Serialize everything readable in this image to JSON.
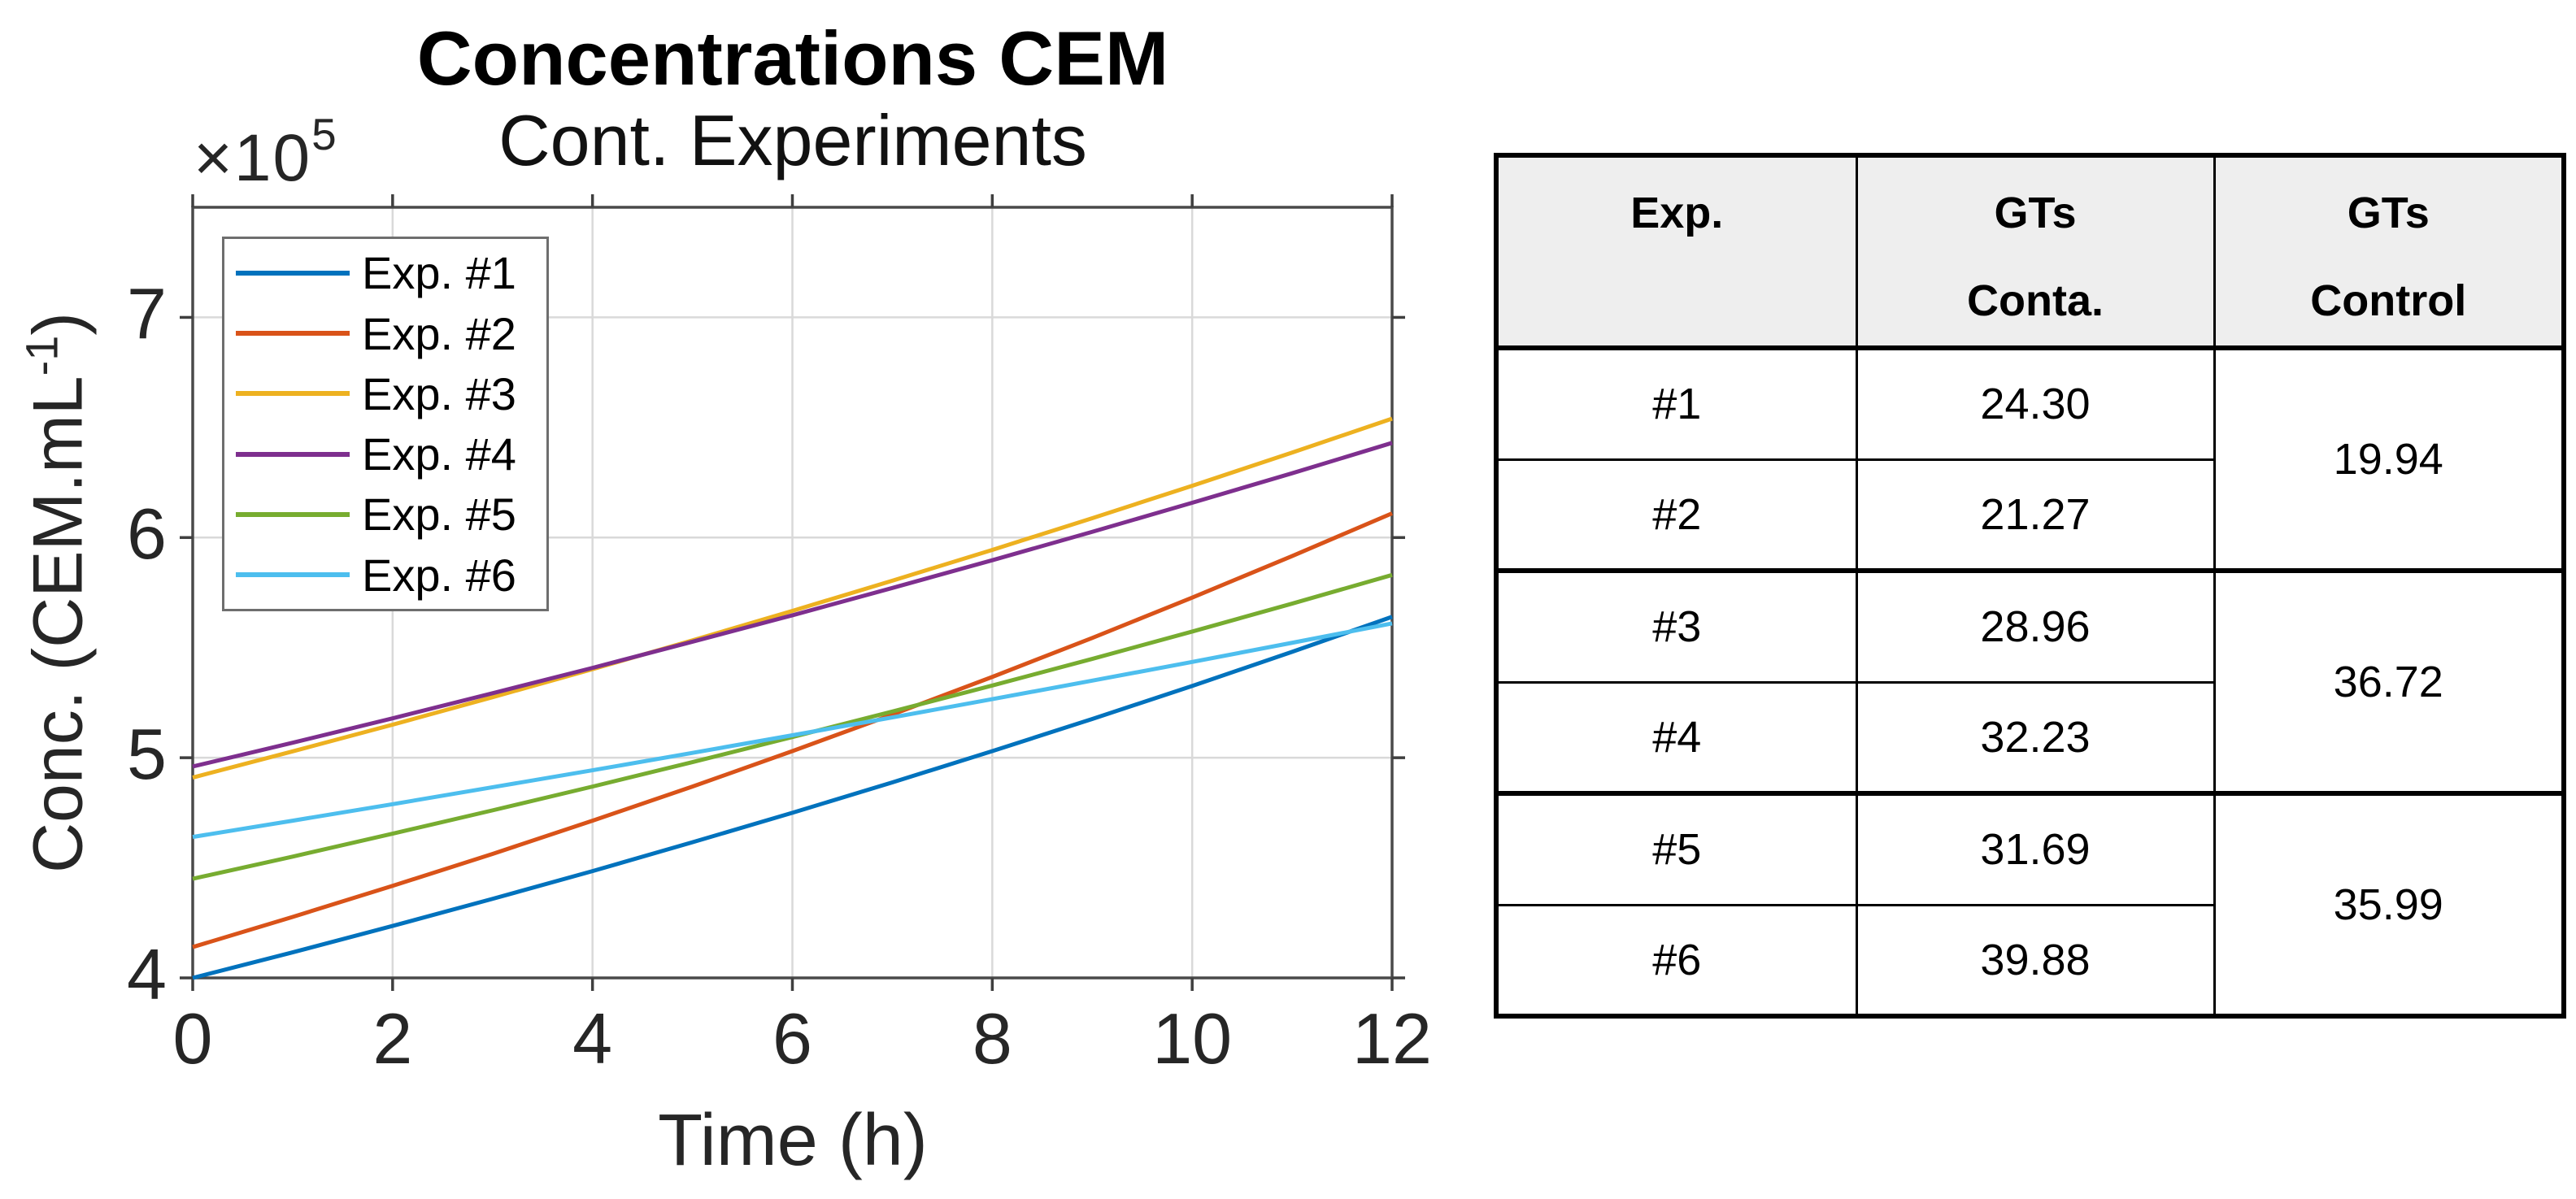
{
  "figure": {
    "title": "Concentrations CEM",
    "subtitle": "Cont. Experiments",
    "exponent_base": "×10",
    "exponent_power": "5",
    "xlabel": "Time (h)",
    "ylabel_pre": "Conc. (CEM.mL",
    "ylabel_sup": "-1",
    "ylabel_post": ")"
  },
  "chart_data": {
    "type": "line",
    "title": "Concentrations CEM",
    "subtitle": "Cont. Experiments",
    "xlabel": "Time (h)",
    "ylabel": "Conc. (CEM.mL^-1)",
    "y_scale_label": "×10^5",
    "xlim": [
      0,
      12
    ],
    "ylim": [
      4,
      7.5
    ],
    "x_ticks": [
      0,
      2,
      4,
      6,
      8,
      10,
      12
    ],
    "y_ticks": [
      4,
      5,
      6,
      7
    ],
    "grid": true,
    "legend_position": "upper-left-inside",
    "x": [
      0,
      1,
      2,
      3,
      4,
      5,
      6,
      7,
      8,
      9,
      10,
      11,
      12
    ],
    "series": [
      {
        "name": "Exp. #1",
        "color": "#0072BD",
        "values": [
          4.0,
          4.116,
          4.236,
          4.359,
          4.485,
          4.616,
          4.75,
          4.888,
          5.03,
          5.176,
          5.326,
          5.481,
          5.64
        ]
      },
      {
        "name": "Exp. #2",
        "color": "#D95319",
        "values": [
          4.14,
          4.277,
          4.418,
          4.563,
          4.714,
          4.869,
          5.03,
          5.196,
          5.367,
          5.544,
          5.727,
          5.916,
          6.11
        ]
      },
      {
        "name": "Exp. #3",
        "color": "#EDB120",
        "values": [
          4.91,
          5.029,
          5.15,
          5.275,
          5.402,
          5.533,
          5.667,
          5.804,
          5.944,
          6.088,
          6.235,
          6.386,
          6.54
        ]
      },
      {
        "name": "Exp. #4",
        "color": "#7E2F8E",
        "values": [
          4.96,
          5.068,
          5.179,
          5.293,
          5.408,
          5.527,
          5.647,
          5.771,
          5.897,
          6.026,
          6.158,
          6.292,
          6.43
        ]
      },
      {
        "name": "Exp. #5",
        "color": "#77AC30",
        "values": [
          4.45,
          4.551,
          4.655,
          4.761,
          4.869,
          4.98,
          5.094,
          5.21,
          5.328,
          5.449,
          5.573,
          5.7,
          5.83
        ]
      },
      {
        "name": "Exp. #6",
        "color": "#4DBEEE",
        "values": [
          4.64,
          4.714,
          4.789,
          4.866,
          4.943,
          5.022,
          5.102,
          5.183,
          5.266,
          5.35,
          5.435,
          5.522,
          5.61
        ]
      }
    ]
  },
  "table": {
    "headers": {
      "exp": "Exp.",
      "conta_line1": "GTs",
      "conta_line2": "Conta.",
      "control_line1": "GTs",
      "control_line2": "Control"
    },
    "rows": [
      {
        "exp": "#1",
        "gts_conta": "24.30"
      },
      {
        "exp": "#2",
        "gts_conta": "21.27"
      },
      {
        "exp": "#3",
        "gts_conta": "28.96"
      },
      {
        "exp": "#4",
        "gts_conta": "32.23"
      },
      {
        "exp": "#5",
        "gts_conta": "31.69"
      },
      {
        "exp": "#6",
        "gts_conta": "39.88"
      }
    ],
    "controls": [
      "19.94",
      "36.72",
      "35.99"
    ]
  }
}
